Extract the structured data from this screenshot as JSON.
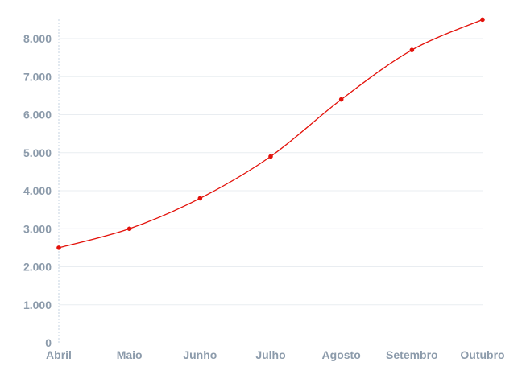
{
  "chart_data": {
    "type": "line",
    "title": "",
    "xlabel": "",
    "ylabel": "",
    "categories": [
      "Abril",
      "Maio",
      "Junho",
      "Julho",
      "Agosto",
      "Setembro",
      "Outubro"
    ],
    "series": [
      {
        "values": [
          2500,
          3000,
          3800,
          4900,
          6400,
          7700,
          8500
        ],
        "color": "#e3120b"
      }
    ],
    "ylim": [
      0,
      8000
    ],
    "yticks": [
      0,
      1000,
      2000,
      3000,
      4000,
      5000,
      6000,
      7000,
      8000
    ],
    "ytick_labels": [
      "0",
      "1.000",
      "2.000",
      "3.000",
      "4.000",
      "5.000",
      "6.000",
      "7.000",
      "8.000"
    ],
    "grid": true,
    "smooth": true,
    "markers": true
  }
}
